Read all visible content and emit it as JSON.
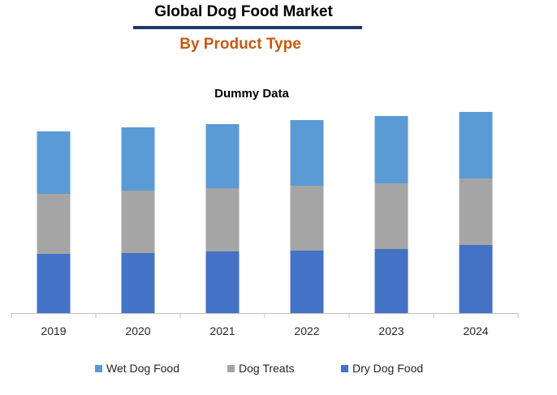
{
  "header": {
    "title": "Global Dog Food Market",
    "subtitle": "By Product Type"
  },
  "colors": {
    "title_rule": "#1f3864",
    "subtitle": "#c55a11",
    "axis": "#bfbfbf"
  },
  "chart_data": {
    "type": "bar",
    "stacked": true,
    "title": "Dummy Data",
    "categories": [
      "2019",
      "2020",
      "2021",
      "2022",
      "2023",
      "2024"
    ],
    "series": [
      {
        "name": "Dry Dog Food",
        "color": "#4472c4",
        "values": [
          73,
          74,
          76,
          77,
          79,
          84
        ]
      },
      {
        "name": "Dog Treats",
        "color": "#a5a5a5",
        "values": [
          74,
          77,
          78,
          80,
          81,
          82
        ]
      },
      {
        "name": "Wet Dog Food",
        "color": "#5b9bd5",
        "values": [
          77,
          78,
          79,
          81,
          83,
          82
        ]
      }
    ],
    "legend": [
      "Wet Dog Food",
      "Dog Treats",
      "Dry Dog Food"
    ],
    "legend_position": "bottom",
    "ylim": [
      0,
      250
    ],
    "grid": false,
    "y_axis_visible": false
  }
}
